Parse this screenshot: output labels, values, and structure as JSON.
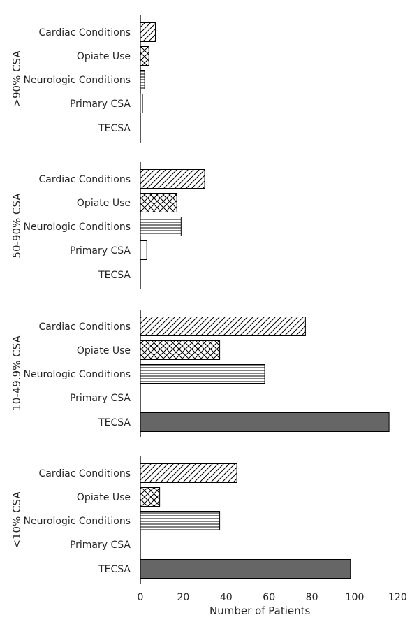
{
  "chart_data": {
    "type": "bar",
    "orientation": "horizontal",
    "categories": [
      "Cardiac Conditions",
      "Opiate Use",
      "Neurologic Conditions",
      "Primary CSA",
      "TECSA"
    ],
    "category_patterns": {
      "Cardiac Conditions": "diagonal-hatch",
      "Opiate Use": "cross-hatch",
      "Neurologic Conditions": "horizontal-hatch",
      "Primary CSA": "none",
      "TECSA": "solid"
    },
    "bar_fill_color": "#ffffff",
    "solid_fill_color": "#666666",
    "edge_color": "#000000",
    "panels": [
      {
        "label": ">90% CSA",
        "values": [
          7,
          4,
          2,
          1,
          0
        ]
      },
      {
        "label": "50-90% CSA",
        "values": [
          30,
          17,
          19,
          3,
          0
        ]
      },
      {
        "label": "10-49.9% CSA",
        "values": [
          77,
          37,
          58,
          0,
          116
        ]
      },
      {
        "label": "<10% CSA",
        "values": [
          45,
          9,
          37,
          0,
          98
        ]
      }
    ],
    "xlabel": "Number of Patients",
    "xlim": [
      0,
      120
    ],
    "xticks": [
      0,
      20,
      40,
      60,
      80,
      100,
      120
    ]
  }
}
